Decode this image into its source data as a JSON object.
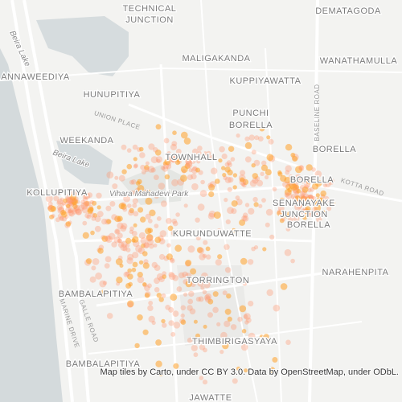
{
  "labels": {
    "technical_junction": [
      "TECHNICAL",
      "JUNCTION"
    ],
    "dematagoda": "DEMATAGODA",
    "maligakanda": "MALIGAKANDA",
    "wanathamulla": "WANATHAMULLA",
    "annaweediya": "ANNAWEEDIYA",
    "kuppiyawatta": "KUPPIYAWATTA",
    "hunupitiya": "HUNUPITIYA",
    "punchi_borella": [
      "PUNCHI",
      "BORELLA"
    ],
    "union_place": "UNION PLACE",
    "borella_north": "BORELLA",
    "weekanda": "WEEKANDA",
    "beira_lake_top": "Beira Lake",
    "beira_lake": "Beira Lake",
    "townhall": "TOWNHALL",
    "borella": "BORELLA",
    "kotta_road": "KOTTA ROAD",
    "kollupitiya": "KOLLUPITIYA",
    "vihara_mahadevi_park": "Vihara Mahadevi Park",
    "senanayake_junction": [
      "SENANAYAKE",
      "JUNCTION",
      "BORELLA"
    ],
    "kurunduwatte": "KURUNDUWATTE",
    "narahenpita": "NARAHENPITA",
    "torrington": "TORRINGTON",
    "bambalapitiya_north": "BAMBALAPITIYA",
    "galle_road": "GALLE ROAD",
    "marine_drive": "MARINE DRIVE",
    "baseline_road": "BASELINE ROAD",
    "thimbirigasyaya": "THIMBIRIGASYAYA",
    "bambalapitiya": "BAMBALAPITIYA",
    "jawatte": "JAWATTE"
  },
  "attribution": "Map tiles by Carto, under CC BY 3.0. Data by OpenStreetMap, under ODbL."
}
